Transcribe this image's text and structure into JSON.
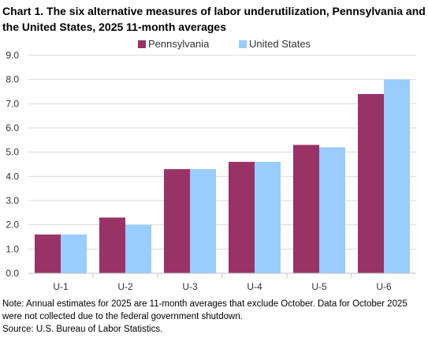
{
  "chart_data": {
    "type": "bar",
    "title": "Chart 1. The six alternative measures of labor underutilization, Pennsylvania and the United States, 2025 11-month averages",
    "categories": [
      "U-1",
      "U-2",
      "U-3",
      "U-4",
      "U-5",
      "U-6"
    ],
    "series": [
      {
        "name": "Pennsylvania",
        "color": "#993366",
        "values": [
          1.6,
          2.3,
          4.3,
          4.6,
          5.3,
          7.4
        ]
      },
      {
        "name": "United States",
        "color": "#99ccff",
        "values": [
          1.6,
          2.0,
          4.3,
          4.6,
          5.2,
          8.0
        ]
      }
    ],
    "ylim": [
      0,
      9
    ],
    "yticks": [
      "0.0",
      "1.0",
      "2.0",
      "3.0",
      "4.0",
      "5.0",
      "6.0",
      "7.0",
      "8.0",
      "9.0"
    ],
    "xlabel": "",
    "ylabel": "",
    "grid": true,
    "legend_position": "top-center"
  },
  "footer": {
    "note": "Note: Annual estimates for 2025 are 11-month averages that exclude October. Data for October 2025 were not collected due to the federal government shutdown.",
    "source": "Source: U.S. Bureau of Labor Statistics."
  }
}
